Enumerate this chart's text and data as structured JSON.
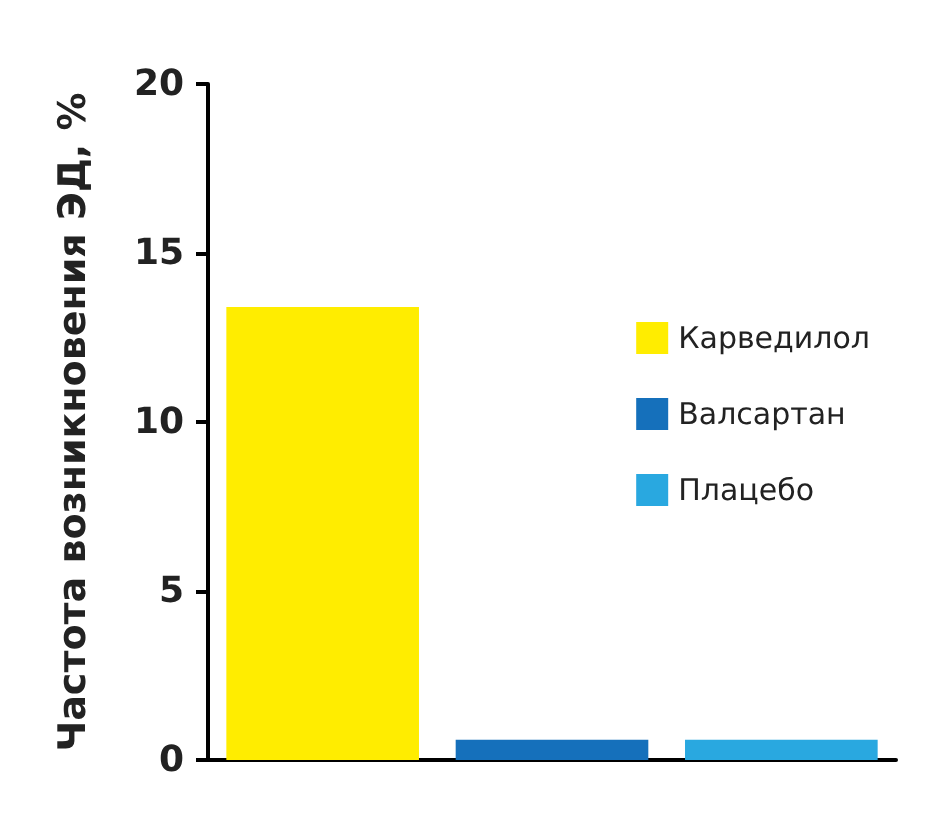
{
  "chart_data": {
    "type": "bar",
    "ylabel": "Частота возникновения ЭД, %",
    "categories": [
      null,
      null,
      null
    ],
    "series": [
      {
        "name": "Карведилол",
        "color": "#ffed00",
        "values": [
          13.4,
          null,
          null
        ]
      },
      {
        "name": "Валсартан",
        "color": "#1570bb",
        "values": [
          null,
          0.6,
          null
        ]
      },
      {
        "name": "Плацебо",
        "color": "#29a8e0",
        "values": [
          null,
          null,
          0.6
        ]
      }
    ],
    "ylim": [
      0,
      20
    ],
    "yticks": [
      0,
      5,
      10,
      15,
      20
    ],
    "grid": false,
    "legend": "right"
  }
}
